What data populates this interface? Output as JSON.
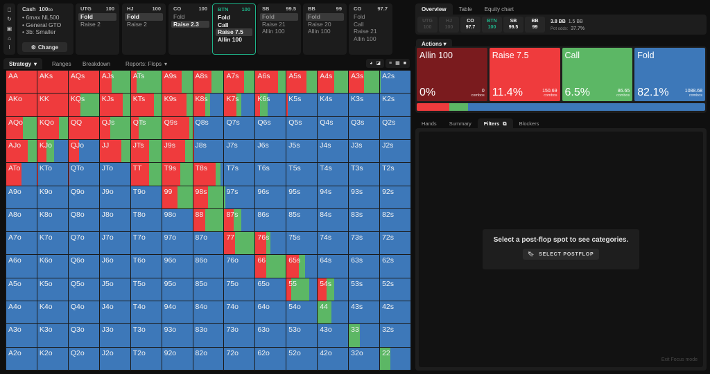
{
  "colors": {
    "allin": "#7a1b1e",
    "raise": "#ef3b3d",
    "call": "#5cb765",
    "fold": "#3d78b9",
    "accent": "#1fb389"
  },
  "icon_rail": [
    {
      "name": "bookmark-icon",
      "glyph": "⎕"
    },
    {
      "name": "refresh-icon",
      "glyph": "↻"
    },
    {
      "name": "save-icon",
      "glyph": "▣"
    },
    {
      "name": "gamepad-icon",
      "glyph": "⌂"
    },
    {
      "name": "text-cursor-icon",
      "glyph": "I"
    }
  ],
  "config": {
    "title": "Cash",
    "stack": "100",
    "stack_unit": "bb",
    "items": [
      "6max NL500",
      "General GTO",
      "3b: Smaller"
    ],
    "change_label": "Change"
  },
  "positions": [
    {
      "pos": "UTG",
      "stack": "100",
      "actions": [
        "Fold",
        "Raise 2"
      ],
      "selected": 0,
      "state": "done"
    },
    {
      "pos": "HJ",
      "stack": "100",
      "actions": [
        "Fold",
        "Raise 2"
      ],
      "selected": 0,
      "state": "done"
    },
    {
      "pos": "CO",
      "stack": "100",
      "actions": [
        "Fold",
        "Raise 2.3"
      ],
      "selected": 1,
      "state": "done"
    },
    {
      "pos": "BTN",
      "stack": "100",
      "actions": [
        "Fold",
        "Call",
        "Raise 7.5",
        "Allin 100"
      ],
      "selected": 2,
      "state": "active"
    },
    {
      "pos": "SB",
      "stack": "99.5",
      "actions": [
        "Fold",
        "Raise 21",
        "Allin 100"
      ],
      "selected": 0,
      "state": "future"
    },
    {
      "pos": "BB",
      "stack": "99",
      "actions": [
        "Fold",
        "Raise 20",
        "Allin 100"
      ],
      "selected": 0,
      "state": "future"
    },
    {
      "pos": "CO",
      "stack": "97.7",
      "actions": [
        "Fold",
        "Call",
        "Raise 21",
        "Allin 100"
      ],
      "selected": -1,
      "state": "future"
    }
  ],
  "left_tabs": [
    {
      "label": "Strategy",
      "dropdown": true,
      "active": true
    },
    {
      "label": "Ranges",
      "dropdown": false,
      "active": false
    },
    {
      "label": "Breakdown",
      "dropdown": false,
      "active": false
    },
    {
      "label": "Reports: Flops",
      "dropdown": true,
      "active": false
    }
  ],
  "view_icons": [
    "pie-icon",
    "contrast-icon",
    "list-icon",
    "grid-icon",
    "square-icon"
  ],
  "ranks": [
    "A",
    "K",
    "Q",
    "J",
    "T",
    "9",
    "8",
    "7",
    "6",
    "5",
    "4",
    "3",
    "2"
  ],
  "grid_freq_note": "per-cell [raise, call] fraction of combos; remainder fold",
  "grid_freq": {
    "AA": [
      1,
      0
    ],
    "AKs": [
      1,
      0
    ],
    "AQs": [
      1,
      0
    ],
    "AJs": [
      0.4,
      0.6
    ],
    "ATs": [
      0.2,
      0.8
    ],
    "A9s": [
      0.65,
      0.35
    ],
    "A8s": [
      0.6,
      0.4
    ],
    "A7s": [
      0.65,
      0.35
    ],
    "A6s": [
      0.75,
      0.25
    ],
    "A5s": [
      0.65,
      0.35
    ],
    "A4s": [
      0.55,
      0.45
    ],
    "A3s": [
      0.5,
      0.5
    ],
    "A2s": [
      0,
      0.02
    ],
    "AKo": [
      1,
      0
    ],
    "KK": [
      1,
      0
    ],
    "KQs": [
      0.4,
      0.6
    ],
    "KJs": [
      0.75,
      0.25
    ],
    "KTs": [
      0.75,
      0.25
    ],
    "K9s": [
      0.8,
      0.2
    ],
    "K8s": [
      0.4,
      0.15
    ],
    "K7s": [
      0.4,
      0.15
    ],
    "K6s": [
      0.15,
      0.25
    ],
    "K5s": [
      0.03,
      0
    ],
    "K4s": [
      0,
      0
    ],
    "K3s": [
      0,
      0
    ],
    "K2s": [
      0,
      0
    ],
    "AQo": [
      0.55,
      0.45
    ],
    "KQo": [
      0.7,
      0.3
    ],
    "QQ": [
      1,
      0
    ],
    "QJs": [
      0.35,
      0.65
    ],
    "QTs": [
      0.25,
      0.75
    ],
    "Q9s": [
      0.9,
      0.1
    ],
    "Q8s": [
      0.04,
      0
    ],
    "Q7s": [
      0,
      0
    ],
    "Q6s": [
      0,
      0
    ],
    "Q5s": [
      0,
      0
    ],
    "Q4s": [
      0,
      0
    ],
    "Q3s": [
      0,
      0
    ],
    "Q2s": [
      0,
      0
    ],
    "AJo": [
      0.7,
      0.3
    ],
    "KJo": [
      0.3,
      0.25
    ],
    "QJo": [
      0.35,
      0
    ],
    "JJ": [
      0.7,
      0.3
    ],
    "JTs": [
      0.6,
      0.4
    ],
    "J9s": [
      0.75,
      0.25
    ],
    "J8s": [
      0.03,
      0
    ],
    "J7s": [
      0,
      0
    ],
    "J6s": [
      0,
      0
    ],
    "J5s": [
      0,
      0
    ],
    "J4s": [
      0,
      0
    ],
    "J3s": [
      0,
      0
    ],
    "J2s": [
      0,
      0
    ],
    "ATo": [
      0.5,
      0
    ],
    "KTo": [
      0.02,
      0
    ],
    "QTo": [
      0.02,
      0
    ],
    "JTo": [
      0,
      0
    ],
    "TT": [
      0.6,
      0.4
    ],
    "T9s": [
      0.6,
      0.4
    ],
    "T8s": [
      0.75,
      0.15
    ],
    "T7s": [
      0,
      0
    ],
    "T6s": [
      0,
      0
    ],
    "T5s": [
      0,
      0
    ],
    "T4s": [
      0,
      0
    ],
    "T3s": [
      0,
      0
    ],
    "T2s": [
      0,
      0
    ],
    "A9o": [
      0,
      0
    ],
    "K9o": [
      0,
      0
    ],
    "Q9o": [
      0,
      0
    ],
    "J9o": [
      0,
      0
    ],
    "T9o": [
      0,
      0
    ],
    "99": [
      0.5,
      0.5
    ],
    "98s": [
      0.5,
      0.5
    ],
    "97s": [
      0,
      0.03
    ],
    "96s": [
      0,
      0
    ],
    "95s": [
      0,
      0
    ],
    "94s": [
      0,
      0
    ],
    "93s": [
      0,
      0
    ],
    "92s": [
      0,
      0
    ],
    "A8o": [
      0,
      0
    ],
    "K8o": [
      0,
      0
    ],
    "Q8o": [
      0,
      0
    ],
    "J8o": [
      0,
      0
    ],
    "T8o": [
      0,
      0
    ],
    "98o": [
      0,
      0
    ],
    "88": [
      0.4,
      0.6
    ],
    "87s": [
      0.3,
      0.25
    ],
    "86s": [
      0,
      0
    ],
    "85s": [
      0,
      0
    ],
    "84s": [
      0,
      0
    ],
    "83s": [
      0,
      0
    ],
    "82s": [
      0,
      0
    ],
    "A7o": [
      0,
      0
    ],
    "K7o": [
      0,
      0
    ],
    "Q7o": [
      0,
      0
    ],
    "J7o": [
      0,
      0
    ],
    "T7o": [
      0,
      0
    ],
    "97o": [
      0,
      0
    ],
    "87o": [
      0,
      0
    ],
    "77": [
      0.35,
      0.65
    ],
    "76s": [
      0.35,
      0.15
    ],
    "75s": [
      0,
      0
    ],
    "74s": [
      0,
      0
    ],
    "73s": [
      0,
      0
    ],
    "72s": [
      0,
      0
    ],
    "A6o": [
      0,
      0
    ],
    "K6o": [
      0,
      0
    ],
    "Q6o": [
      0,
      0
    ],
    "J6o": [
      0,
      0
    ],
    "T6o": [
      0,
      0
    ],
    "96o": [
      0,
      0
    ],
    "86o": [
      0,
      0
    ],
    "76o": [
      0,
      0
    ],
    "66": [
      0.35,
      0.65
    ],
    "65s": [
      0.4,
      0.2
    ],
    "64s": [
      0,
      0
    ],
    "63s": [
      0,
      0
    ],
    "62s": [
      0,
      0
    ],
    "A5o": [
      0,
      0
    ],
    "K5o": [
      0,
      0
    ],
    "Q5o": [
      0,
      0
    ],
    "J5o": [
      0,
      0
    ],
    "T5o": [
      0,
      0
    ],
    "95o": [
      0,
      0
    ],
    "85o": [
      0,
      0
    ],
    "75o": [
      0,
      0
    ],
    "65o": [
      0,
      0
    ],
    "55": [
      0.15,
      0.6
    ],
    "54s": [
      0.3,
      0.25
    ],
    "53s": [
      0,
      0
    ],
    "52s": [
      0,
      0
    ],
    "A4o": [
      0,
      0
    ],
    "K4o": [
      0,
      0
    ],
    "Q4o": [
      0,
      0
    ],
    "J4o": [
      0,
      0
    ],
    "T4o": [
      0,
      0
    ],
    "94o": [
      0,
      0
    ],
    "84o": [
      0,
      0
    ],
    "74o": [
      0,
      0
    ],
    "64o": [
      0,
      0
    ],
    "54o": [
      0,
      0
    ],
    "44": [
      0,
      0.45
    ],
    "43s": [
      0,
      0
    ],
    "42s": [
      0,
      0
    ],
    "A3o": [
      0,
      0
    ],
    "K3o": [
      0,
      0
    ],
    "Q3o": [
      0,
      0
    ],
    "J3o": [
      0,
      0
    ],
    "T3o": [
      0,
      0
    ],
    "93o": [
      0,
      0
    ],
    "83o": [
      0,
      0
    ],
    "73o": [
      0,
      0
    ],
    "63o": [
      0,
      0
    ],
    "53o": [
      0,
      0
    ],
    "43o": [
      0,
      0
    ],
    "33": [
      0,
      0.35
    ],
    "32s": [
      0,
      0
    ],
    "A2o": [
      0,
      0
    ],
    "K2o": [
      0,
      0
    ],
    "Q2o": [
      0,
      0
    ],
    "J2o": [
      0,
      0
    ],
    "T2o": [
      0,
      0
    ],
    "92o": [
      0,
      0
    ],
    "82o": [
      0,
      0
    ],
    "72o": [
      0,
      0
    ],
    "62o": [
      0,
      0
    ],
    "52o": [
      0,
      0
    ],
    "42o": [
      0,
      0
    ],
    "32o": [
      0,
      0
    ],
    "22": [
      0,
      0.35
    ]
  },
  "right_tabs": [
    {
      "label": "Overview",
      "active": true
    },
    {
      "label": "Table",
      "active": false
    },
    {
      "label": "Equity chart",
      "active": false
    }
  ],
  "seats": [
    {
      "pos": "UTG",
      "stack": "100",
      "state": "dim"
    },
    {
      "pos": "HJ",
      "stack": "100",
      "state": "dim"
    },
    {
      "pos": "CO",
      "stack": "97.7",
      "state": "normal"
    },
    {
      "pos": "BTN",
      "stack": "100",
      "state": "active"
    },
    {
      "pos": "SB",
      "stack": "99.5",
      "state": "normal"
    },
    {
      "pos": "BB",
      "stack": "99",
      "state": "normal"
    }
  ],
  "pot": {
    "main": "3.8 BB",
    "secondary": "1.5 BB",
    "odds_label": "Pot odds:",
    "odds_value": "37.7%"
  },
  "actions_tab_label": "Actions",
  "actions": [
    {
      "name": "Allin 100",
      "pct": "0%",
      "combos": "0",
      "combos_label": "combos",
      "color": "#7a1b1e",
      "share": 0
    },
    {
      "name": "Raise 7.5",
      "pct": "11.4%",
      "combos": "150.69",
      "combos_label": "combos",
      "color": "#ef3b3d",
      "share": 11.4
    },
    {
      "name": "Call",
      "pct": "6.5%",
      "combos": "86.65",
      "combos_label": "combos",
      "color": "#5cb765",
      "share": 6.5
    },
    {
      "name": "Fold",
      "pct": "82.1%",
      "combos": "1088.68",
      "combos_label": "combos",
      "color": "#3d78b9",
      "share": 82.1
    }
  ],
  "bottom_tabs": [
    {
      "label": "Hands",
      "active": false
    },
    {
      "label": "Summary",
      "active": false
    },
    {
      "label": "Filters",
      "active": true,
      "icon": "⧉"
    },
    {
      "label": "Blockers",
      "active": false
    }
  ],
  "empty_state": {
    "message": "Select a post-flop spot to see categories.",
    "button_label": "SELECT POSTFLOP"
  },
  "exit_focus_label": "Exit Focus mode"
}
